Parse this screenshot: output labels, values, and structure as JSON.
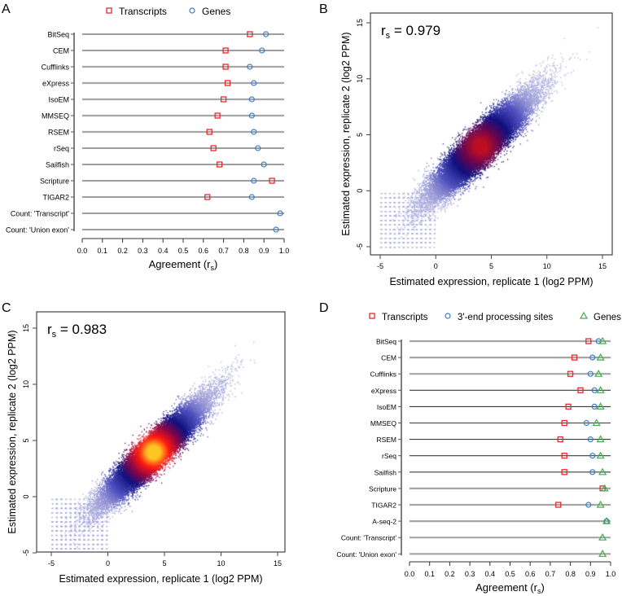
{
  "panels": {
    "A": {
      "label": "A",
      "chart_data": {
        "type": "dotplot",
        "xlabel": "Agreement (r",
        "xlabel_sub": "s",
        "xlabel_end": ")",
        "xlim": [
          0,
          1
        ],
        "xticks": [
          "0.0",
          "0.1",
          "0.2",
          "0.3",
          "0.4",
          "0.5",
          "0.6",
          "0.7",
          "0.8",
          "0.9",
          "1.0"
        ],
        "categories": [
          "BitSeq",
          "CEM",
          "Cufflinks",
          "eXpress",
          "IsoEM",
          "MMSEQ",
          "RSEM",
          "rSeq",
          "Sailfish",
          "Scripture",
          "TIGAR2",
          "Count: 'Transcript'",
          "Count: 'Union exon'"
        ],
        "series": [
          {
            "name": "Transcripts",
            "marker": "square",
            "color": "#e8292b",
            "values": [
              0.83,
              0.71,
              0.71,
              0.72,
              0.7,
              0.67,
              0.63,
              0.65,
              0.68,
              0.94,
              0.62,
              null,
              null
            ]
          },
          {
            "name": "Genes",
            "marker": "circle",
            "color": "#3a7dc4",
            "values": [
              0.91,
              0.89,
              0.83,
              0.85,
              0.84,
              0.84,
              0.85,
              0.87,
              0.9,
              0.85,
              0.84,
              0.98,
              0.96
            ]
          }
        ]
      }
    },
    "B": {
      "label": "B",
      "chart_data": {
        "type": "scatter",
        "annotation": "r",
        "annotation_sub": "s",
        "annotation_value": " = 0.979",
        "rs": 0.979,
        "xlabel": "Estimated expression, replicate 1 (log2 PPM)",
        "ylabel": "Estimated expression, replicate 2 (log2 PPM)",
        "xlim": [
          -5,
          15
        ],
        "ylim": [
          -5,
          15
        ],
        "xticks": [
          "-5",
          "0",
          "5",
          "10",
          "15"
        ],
        "yticks": [
          "-5",
          "0",
          "5",
          "10",
          "15"
        ],
        "density_center": [
          4,
          4
        ]
      }
    },
    "C": {
      "label": "C",
      "chart_data": {
        "type": "scatter",
        "annotation": "r",
        "annotation_sub": "s",
        "annotation_value": " = 0.983",
        "rs": 0.983,
        "xlabel": "Estimated expression, replicate 1 (log2 PPM)",
        "ylabel": "Estimated expression, replicate 2 (log2 PPM)",
        "xlim": [
          -5,
          15
        ],
        "ylim": [
          -5,
          15
        ],
        "xticks": [
          "-5",
          "0",
          "5",
          "10",
          "15"
        ],
        "yticks": [
          "-5",
          "0",
          "5",
          "10",
          "15"
        ],
        "density_center": [
          4,
          4
        ]
      }
    },
    "D": {
      "label": "D",
      "chart_data": {
        "type": "dotplot",
        "xlabel": "Agreement (r",
        "xlabel_sub": "s",
        "xlabel_end": ")",
        "xlim": [
          0,
          1
        ],
        "xticks": [
          "0.0",
          "0.1",
          "0.2",
          "0.3",
          "0.4",
          "0.5",
          "0.6",
          "0.7",
          "0.8",
          "0.9",
          "1.0"
        ],
        "categories": [
          "BitSeq",
          "CEM",
          "Cufflinks",
          "eXpress",
          "IsoEM",
          "MMSEQ",
          "RSEM",
          "rSeq",
          "Sailfish",
          "Scripture",
          "TIGAR2",
          "A-seq-2",
          "Count: 'Transcript'",
          "Count: 'Union exon'"
        ],
        "series": [
          {
            "name": "Transcripts",
            "marker": "square",
            "color": "#e8292b",
            "values": [
              0.89,
              0.82,
              0.8,
              0.85,
              0.79,
              0.77,
              0.75,
              0.77,
              0.77,
              0.96,
              0.74,
              null,
              null,
              null
            ]
          },
          {
            "name": "3'-end processing sites",
            "marker": "circle",
            "color": "#3a7dc4",
            "values": [
              0.94,
              0.91,
              0.9,
              0.92,
              0.92,
              0.88,
              0.9,
              0.91,
              0.91,
              null,
              0.89,
              0.98,
              null,
              null
            ]
          },
          {
            "name": "Genes",
            "marker": "triangle",
            "color": "#3fae49",
            "values": [
              0.96,
              0.95,
              0.94,
              0.95,
              0.95,
              0.93,
              0.95,
              0.95,
              0.96,
              0.97,
              0.95,
              0.98,
              0.96,
              0.96
            ]
          }
        ]
      }
    }
  }
}
